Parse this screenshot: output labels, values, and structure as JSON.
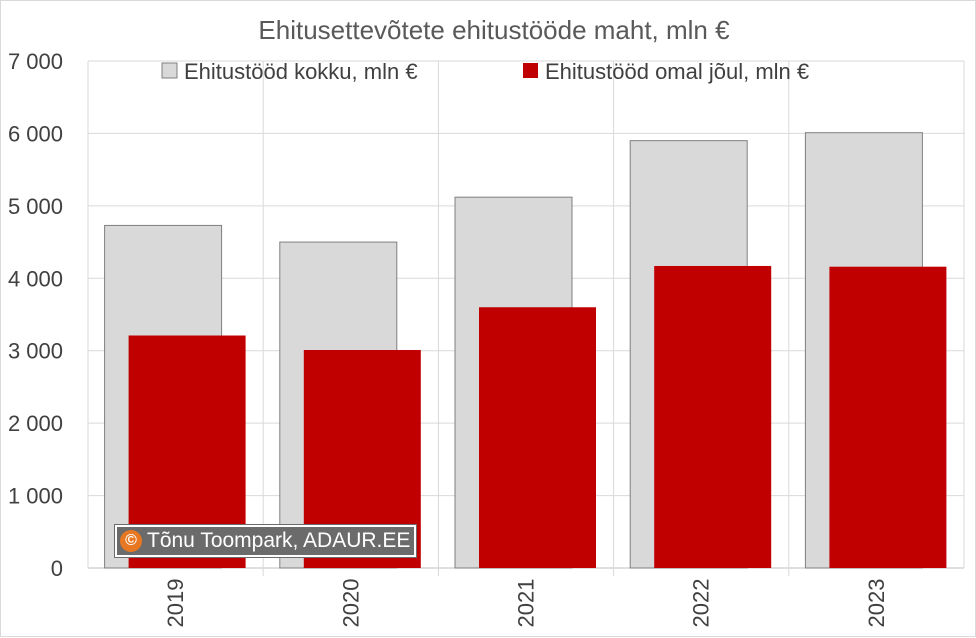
{
  "chart_data": {
    "type": "bar",
    "title": "Ehitusettevõtete ehitustööde maht, mln €",
    "categories": [
      "2019",
      "2020",
      "2021",
      "2022",
      "2023"
    ],
    "series": [
      {
        "name": "Ehitustööd kokku, mln €",
        "color": "#d9d9d9",
        "values": [
          4730,
          4500,
          5120,
          5900,
          6010
        ]
      },
      {
        "name": "Ehitustööd omal jõul, mln €",
        "color": "#c00000",
        "values": [
          3210,
          3010,
          3600,
          4170,
          4160
        ]
      }
    ],
    "ylim": [
      0,
      7000
    ],
    "yticks": [
      "0",
      "1 000",
      "2 000",
      "3 000",
      "4 000",
      "5 000",
      "6 000",
      "7 000"
    ],
    "xlabel": "",
    "ylabel": "",
    "grid": true,
    "legend_position": "top"
  },
  "watermark": {
    "logo": "©",
    "text": "Tõnu Toompark, ADAUR.EE"
  }
}
